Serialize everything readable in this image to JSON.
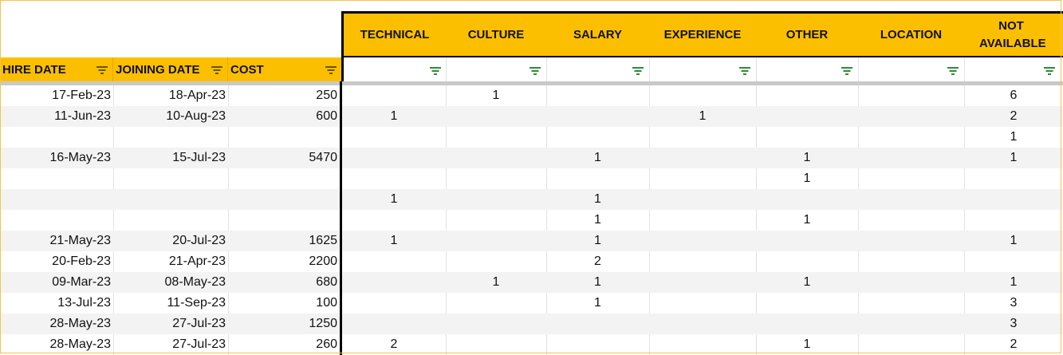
{
  "left_headers": [
    "HIRE DATE",
    "JOINING DATE",
    "COST"
  ],
  "reason_headers": [
    "TECHNICAL",
    "CULTURE",
    "SALARY",
    "EXPERIENCE",
    "OTHER",
    "LOCATION",
    "NOT AVAILABLE"
  ],
  "colors": {
    "header_fill": "#fcbf00",
    "filter_icon_green": "#2e8b3a",
    "filter_icon_dark": "#6b5300"
  },
  "rows": [
    {
      "hire": "17-Feb-23",
      "join": "18-Apr-23",
      "cost": "250",
      "reasons": [
        "",
        "1",
        "",
        "",
        "",
        "",
        "6"
      ]
    },
    {
      "hire": "11-Jun-23",
      "join": "10-Aug-23",
      "cost": "600",
      "reasons": [
        "1",
        "",
        "",
        "1",
        "",
        "",
        "2"
      ]
    },
    {
      "hire": "",
      "join": "",
      "cost": "",
      "reasons": [
        "",
        "",
        "",
        "",
        "",
        "",
        "1"
      ]
    },
    {
      "hire": "16-May-23",
      "join": "15-Jul-23",
      "cost": "5470",
      "reasons": [
        "",
        "",
        "1",
        "",
        "1",
        "",
        "1"
      ]
    },
    {
      "hire": "",
      "join": "",
      "cost": "",
      "reasons": [
        "",
        "",
        "",
        "",
        "1",
        "",
        ""
      ]
    },
    {
      "hire": "",
      "join": "",
      "cost": "",
      "reasons": [
        "1",
        "",
        "1",
        "",
        "",
        "",
        ""
      ]
    },
    {
      "hire": "",
      "join": "",
      "cost": "",
      "reasons": [
        "",
        "",
        "1",
        "",
        "1",
        "",
        ""
      ]
    },
    {
      "hire": "21-May-23",
      "join": "20-Jul-23",
      "cost": "1625",
      "reasons": [
        "1",
        "",
        "1",
        "",
        "",
        "",
        "1"
      ]
    },
    {
      "hire": "20-Feb-23",
      "join": "21-Apr-23",
      "cost": "2200",
      "reasons": [
        "",
        "",
        "2",
        "",
        "",
        "",
        ""
      ]
    },
    {
      "hire": "09-Mar-23",
      "join": "08-May-23",
      "cost": "680",
      "reasons": [
        "",
        "1",
        "1",
        "",
        "1",
        "",
        "1"
      ]
    },
    {
      "hire": "13-Jul-23",
      "join": "11-Sep-23",
      "cost": "100",
      "reasons": [
        "",
        "",
        "1",
        "",
        "",
        "",
        "3"
      ]
    },
    {
      "hire": "28-May-23",
      "join": "27-Jul-23",
      "cost": "1250",
      "reasons": [
        "",
        "",
        "",
        "",
        "",
        "",
        "3"
      ]
    },
    {
      "hire": "28-May-23",
      "join": "27-Jul-23",
      "cost": "260",
      "reasons": [
        "2",
        "",
        "",
        "",
        "1",
        "",
        "2"
      ]
    }
  ]
}
